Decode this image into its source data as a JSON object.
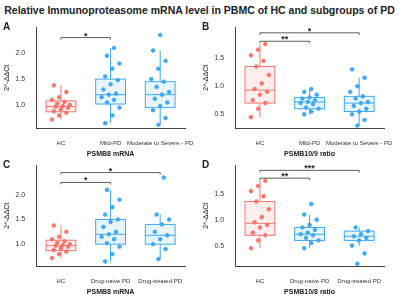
{
  "title": "Relative Immunoproteasome mRNA level in PBMC of HC and subgroups of PD",
  "chart_data": [
    {
      "type": "box",
      "label": "A",
      "x_label": "PSMB8 mRNA",
      "y_label": "2^-ΔΔCt",
      "categories": [
        "HC",
        "Mild-PD",
        "Moderate to Severe - PD"
      ],
      "colors": [
        "#f8766d",
        "#3fa9f5",
        "#3fa9f5"
      ],
      "ylim": [
        0.55,
        2.5
      ],
      "yticks": [
        {
          "value": 1,
          "label": "1.0"
        },
        {
          "value": 1.5,
          "label": "1.5"
        },
        {
          "value": 2,
          "label": "2.0"
        }
      ],
      "grid": false,
      "boxes": [
        {
          "low": 0.72,
          "q1": 0.87,
          "median": 0.97,
          "q3": 1.08,
          "high": 1.38
        },
        {
          "low": 0.65,
          "q1": 1.02,
          "median": 1.2,
          "q3": 1.5,
          "high": 2.1
        },
        {
          "low": 0.62,
          "q1": 0.95,
          "median": 1.2,
          "q3": 1.45,
          "high": 2.05
        }
      ],
      "points": [
        [
          0.72,
          0.8,
          0.85,
          0.88,
          0.92,
          0.95,
          0.97,
          0.98,
          1.0,
          1.03,
          1.06,
          1.1,
          1.15,
          1.25,
          1.38
        ],
        [
          0.65,
          0.8,
          0.95,
          1.05,
          1.1,
          1.15,
          1.2,
          1.22,
          1.3,
          1.4,
          1.48,
          1.55,
          1.7,
          1.8,
          1.95,
          2.1
        ],
        [
          0.62,
          0.75,
          0.9,
          0.98,
          1.05,
          1.12,
          1.2,
          1.25,
          1.35,
          1.45,
          1.5,
          1.7,
          1.85,
          2.05,
          2.35
        ]
      ],
      "annotations": [
        {
          "from": 0,
          "to": 1,
          "y": 2.3,
          "label": "*"
        }
      ]
    },
    {
      "type": "box",
      "label": "B",
      "x_label": "PSMB10/9 ratio",
      "y_label": "2^-ΔΔCt",
      "categories": [
        "HC",
        "Mild-PD",
        "Moderate to Severe - PD"
      ],
      "colors": [
        "#f8766d",
        "#3fa9f5",
        "#3fa9f5"
      ],
      "ylim": [
        0.25,
        2.05
      ],
      "yticks": [
        {
          "value": 0.5,
          "label": "0.5"
        },
        {
          "value": 1,
          "label": "1.0"
        },
        {
          "value": 1.5,
          "label": "1.5"
        }
      ],
      "grid": false,
      "boxes": [
        {
          "low": 0.45,
          "q1": 0.7,
          "median": 0.93,
          "q3": 1.35,
          "high": 1.75
        },
        {
          "low": 0.5,
          "q1": 0.6,
          "median": 0.72,
          "q3": 0.8,
          "high": 0.95
        },
        {
          "low": 0.3,
          "q1": 0.55,
          "median": 0.7,
          "q3": 0.82,
          "high": 1.15
        }
      ],
      "points": [
        [
          0.45,
          0.6,
          0.7,
          0.75,
          0.85,
          0.9,
          0.95,
          1.05,
          1.2,
          1.35,
          1.45,
          1.55,
          1.65,
          1.75
        ],
        [
          0.5,
          0.55,
          0.6,
          0.62,
          0.68,
          0.7,
          0.72,
          0.75,
          0.78,
          0.8,
          0.85,
          0.9,
          0.95
        ],
        [
          0.3,
          0.4,
          0.5,
          0.55,
          0.6,
          0.65,
          0.7,
          0.72,
          0.78,
          0.82,
          0.9,
          1.0,
          1.15,
          1.3
        ]
      ],
      "annotations": [
        {
          "from": 0,
          "to": 1,
          "y": 1.8,
          "label": "**"
        },
        {
          "from": 0,
          "to": 2,
          "y": 1.95,
          "label": "*"
        }
      ]
    },
    {
      "type": "box",
      "label": "C",
      "x_label": "PSMB8 mRNA",
      "y_label": "2^-ΔΔCt",
      "categories": [
        "HC",
        "Drug-naive PD",
        "Drug-treated PD"
      ],
      "colors": [
        "#f8766d",
        "#3fa9f5",
        "#3fa9f5"
      ],
      "ylim": [
        0.55,
        2.6
      ],
      "yticks": [
        {
          "value": 1,
          "label": "1.0"
        },
        {
          "value": 1.5,
          "label": "1.5"
        },
        {
          "value": 2,
          "label": "2.0"
        }
      ],
      "grid": false,
      "boxes": [
        {
          "low": 0.72,
          "q1": 0.87,
          "median": 0.97,
          "q3": 1.08,
          "high": 1.38
        },
        {
          "low": 0.65,
          "q1": 1.0,
          "median": 1.2,
          "q3": 1.5,
          "high": 2.1
        },
        {
          "low": 0.7,
          "q1": 1.0,
          "median": 1.18,
          "q3": 1.4,
          "high": 1.6
        }
      ],
      "points": [
        [
          0.72,
          0.8,
          0.85,
          0.88,
          0.92,
          0.95,
          0.97,
          0.98,
          1.0,
          1.03,
          1.06,
          1.1,
          1.15,
          1.25,
          1.38
        ],
        [
          0.65,
          0.8,
          0.95,
          1.02,
          1.1,
          1.15,
          1.2,
          1.25,
          1.35,
          1.45,
          1.5,
          1.6,
          1.75,
          1.9,
          2.1
        ],
        [
          0.7,
          0.9,
          1.0,
          1.1,
          1.18,
          1.25,
          1.4,
          1.5,
          1.6,
          2.35
        ]
      ],
      "annotations": [
        {
          "from": 0,
          "to": 1,
          "y": 2.25,
          "label": "*"
        },
        {
          "from": 0,
          "to": 2,
          "y": 2.45,
          "label": "*"
        }
      ]
    },
    {
      "type": "box",
      "label": "D",
      "x_label": "PSMB10/8 ratio",
      "y_label": "2^-ΔΔCt",
      "categories": [
        "HC",
        "Drug-naive PD",
        "Drug-treated PD"
      ],
      "colors": [
        "#f8766d",
        "#3fa9f5",
        "#3fa9f5"
      ],
      "ylim": [
        0.1,
        2.05
      ],
      "yticks": [
        {
          "value": 0.5,
          "label": "0.5"
        },
        {
          "value": 1,
          "label": "1.0"
        },
        {
          "value": 1.5,
          "label": "1.5"
        }
      ],
      "grid": false,
      "boxes": [
        {
          "low": 0.45,
          "q1": 0.7,
          "median": 0.93,
          "q3": 1.35,
          "high": 1.75
        },
        {
          "low": 0.45,
          "q1": 0.6,
          "median": 0.72,
          "q3": 0.85,
          "high": 1.1
        },
        {
          "low": 0.5,
          "q1": 0.6,
          "median": 0.68,
          "q3": 0.78,
          "high": 0.85
        }
      ],
      "points": [
        [
          0.45,
          0.6,
          0.7,
          0.75,
          0.85,
          0.9,
          0.95,
          1.05,
          1.2,
          1.35,
          1.45,
          1.55,
          1.65,
          1.75
        ],
        [
          0.45,
          0.55,
          0.6,
          0.65,
          0.7,
          0.72,
          0.75,
          0.8,
          0.85,
          0.9,
          1.0,
          1.1,
          1.3
        ],
        [
          0.15,
          0.35,
          0.5,
          0.6,
          0.65,
          0.68,
          0.72,
          0.78,
          0.85
        ]
      ],
      "annotations": [
        {
          "from": 0,
          "to": 1,
          "y": 1.8,
          "label": "**"
        },
        {
          "from": 0,
          "to": 2,
          "y": 1.95,
          "label": "***"
        }
      ]
    }
  ]
}
